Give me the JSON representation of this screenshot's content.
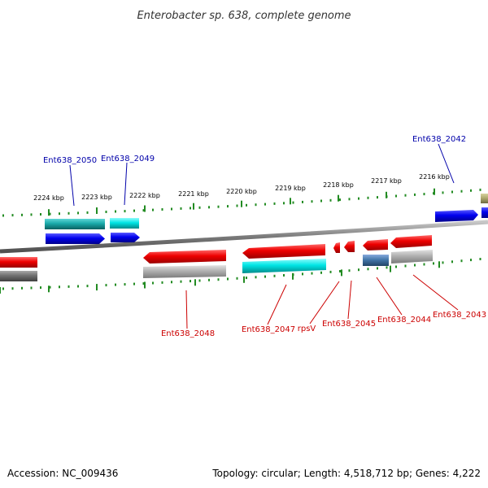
{
  "title": "Enterobacter sp. 638, complete genome",
  "footer": {
    "accession": "Accession: NC_009436",
    "topology": "Topology: circular; Length: 4,518,712 bp; Genes: 4,222"
  },
  "colors": {
    "forward_label": "#0000aa",
    "reverse_label": "#cc0000",
    "ticks": "#228b22",
    "backbone": "#888888"
  },
  "scale_labels": [
    "2224 kbp",
    "2223 kbp",
    "2222 kbp",
    "2221 kbp",
    "2220 kbp",
    "2219 kbp",
    "2218 kbp",
    "2217 kbp",
    "2216 kbp"
  ],
  "forward_gene_labels": [
    "Ent638_2050",
    "Ent638_2049",
    "Ent638_2042"
  ],
  "reverse_gene_labels": [
    "Ent638_2048",
    "Ent638_2047",
    "rpsV",
    "Ent638_2045",
    "Ent638_2044",
    "Ent638_2043"
  ],
  "feature_colors": {
    "cds_forward": "#0000ee",
    "cds_reverse": "#ee0000",
    "gene_forward": "#00cccc",
    "gene_reverse": "#aaaaaa",
    "other": "#4477aa"
  }
}
